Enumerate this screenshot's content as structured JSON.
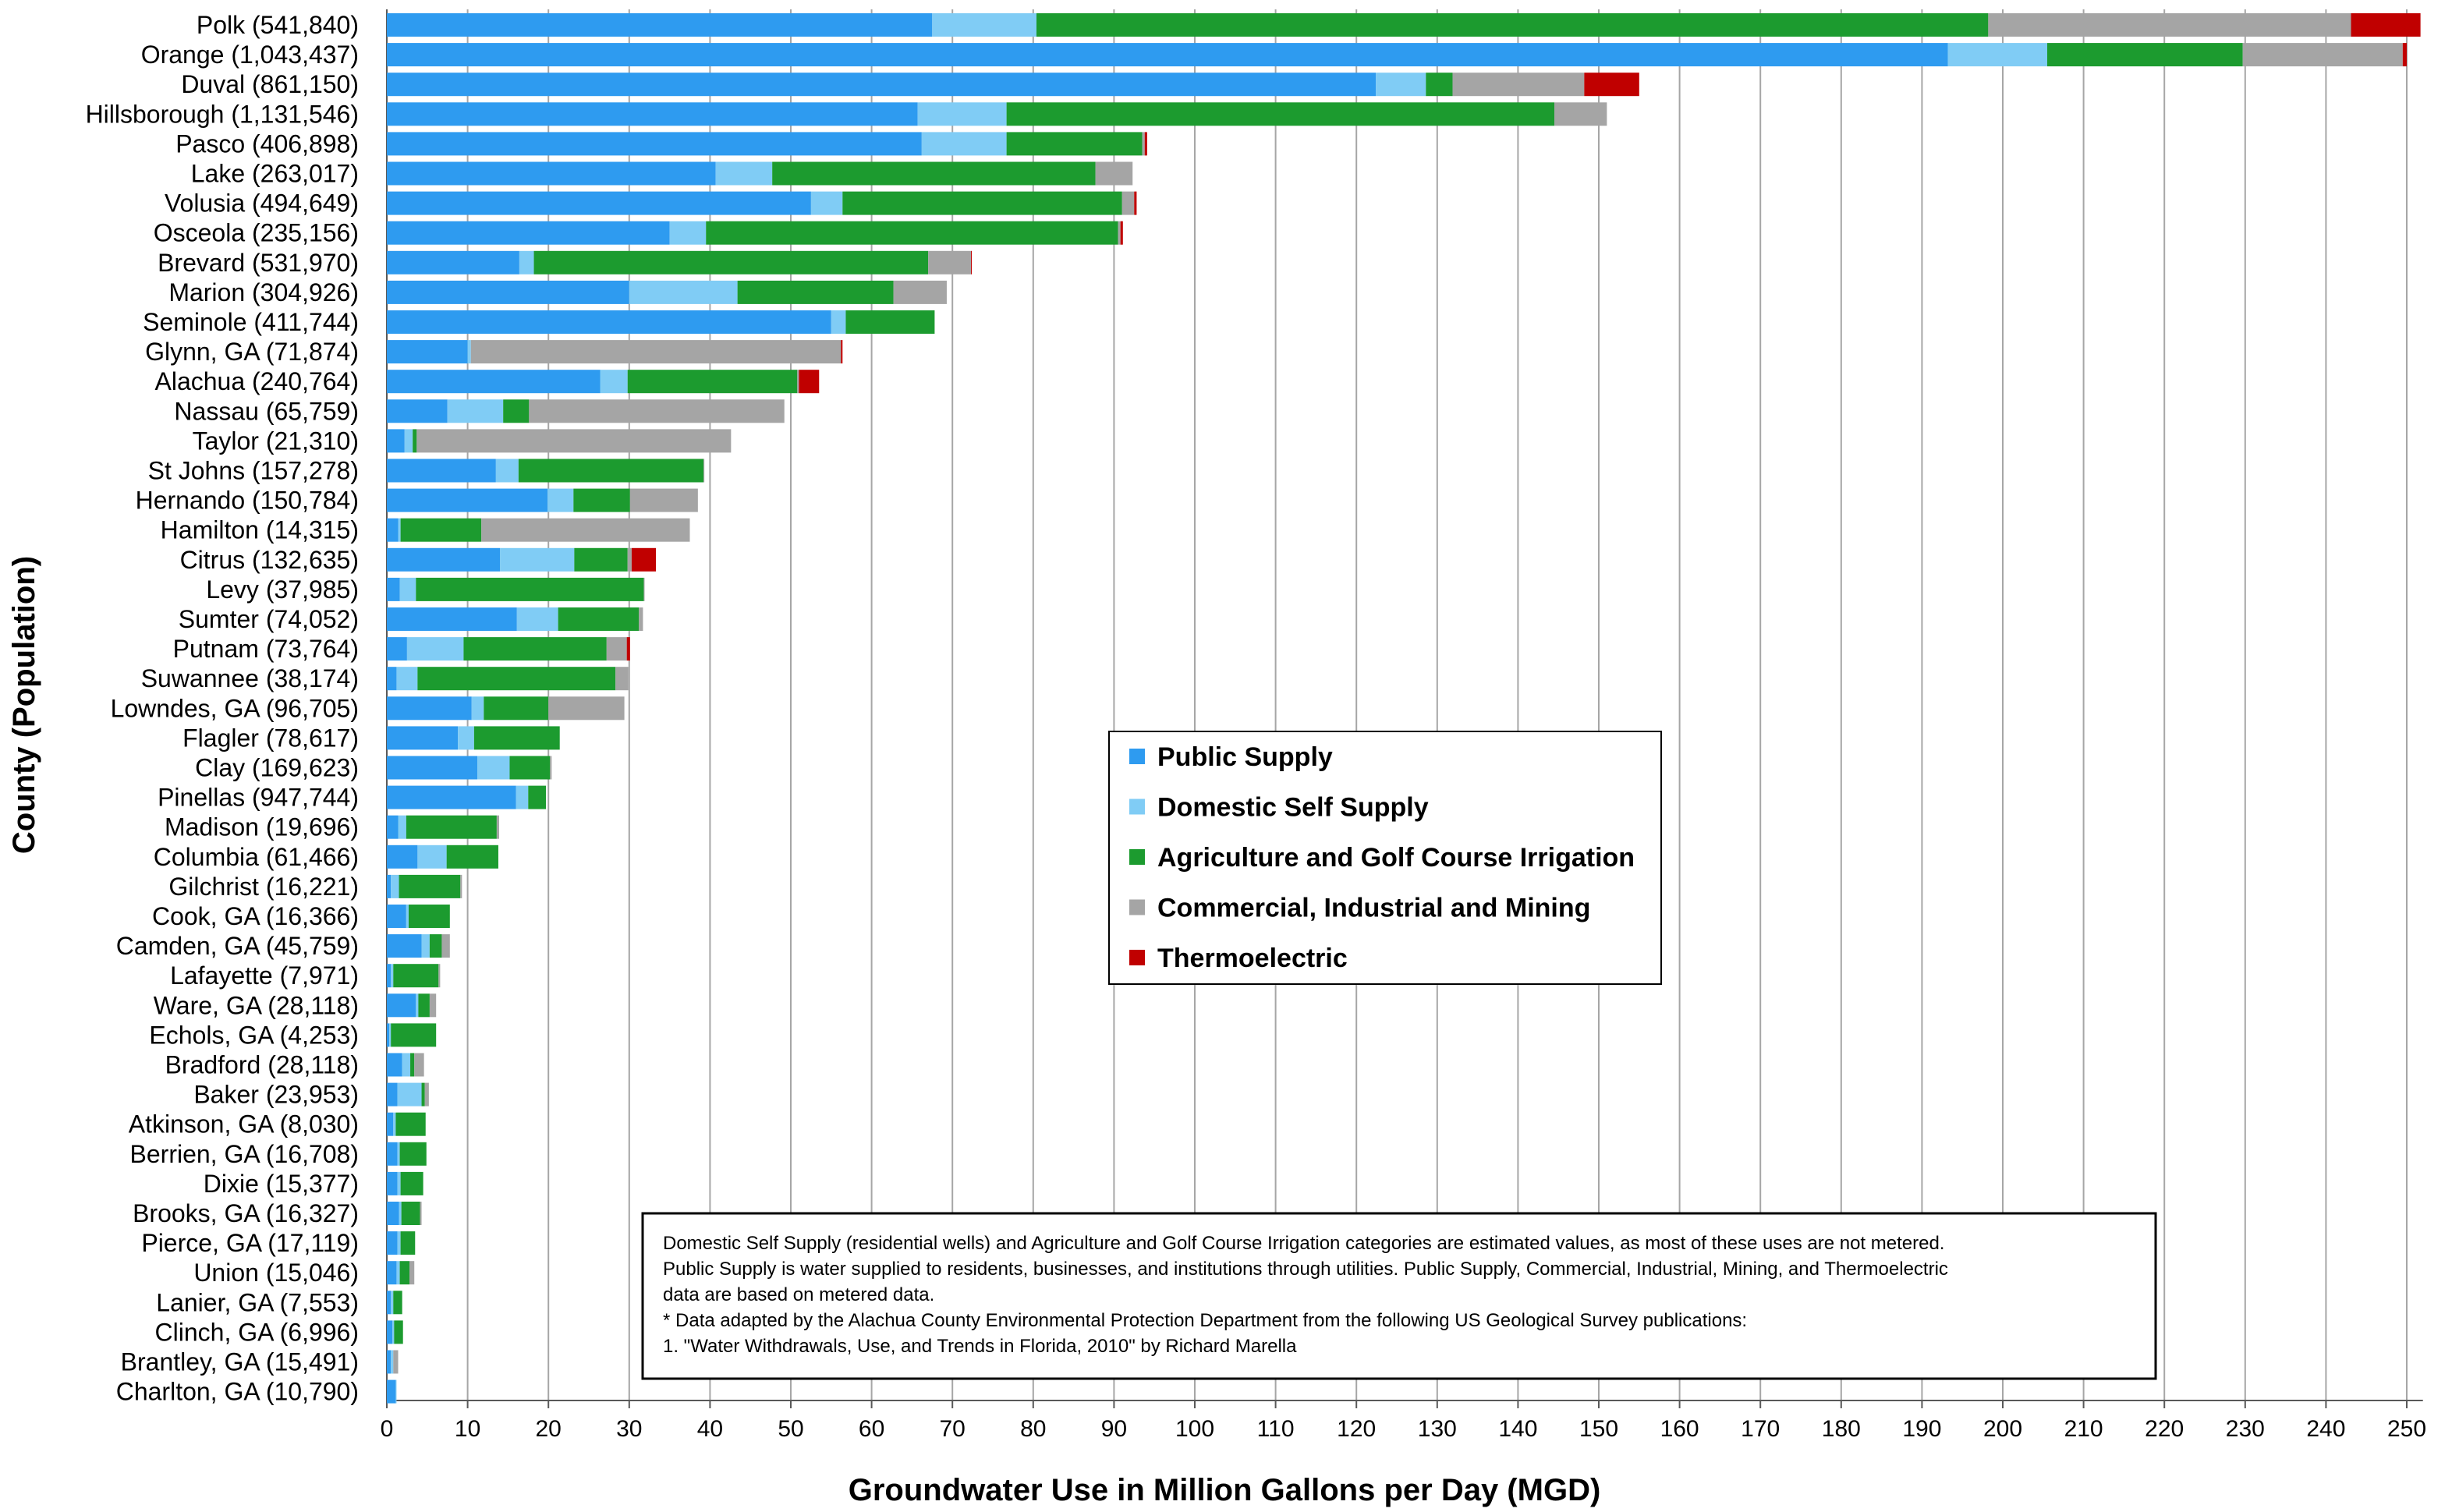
{
  "chart_data": {
    "type": "bar",
    "orientation": "horizontal",
    "stacked": true,
    "title": "",
    "xlabel": "Groundwater Use in Million Gallons per Day (MGD)",
    "ylabel": "County (Population)",
    "xlim": [
      0,
      252
    ],
    "x_ticks": [
      0,
      10,
      20,
      30,
      40,
      50,
      60,
      70,
      80,
      90,
      100,
      110,
      120,
      130,
      140,
      150,
      160,
      170,
      180,
      190,
      200,
      210,
      220,
      230,
      240,
      250
    ],
    "grid": "vertical",
    "legend_position": "center-right",
    "categories": [
      "Polk (541,840)",
      "Orange (1,043,437)",
      "Duval (861,150)",
      "Hillsborough (1,131,546)",
      "Pasco (406,898)",
      "Lake (263,017)",
      "Volusia (494,649)",
      "Osceola (235,156)",
      "Brevard (531,970)",
      "Marion (304,926)",
      "Seminole (411,744)",
      "Glynn, GA (71,874)",
      "Alachua (240,764)",
      "Nassau (65,759)",
      "Taylor (21,310)",
      "St Johns (157,278)",
      "Hernando (150,784)",
      "Hamilton (14,315)",
      "Citrus (132,635)",
      "Levy (37,985)",
      "Sumter (74,052)",
      "Putnam (73,764)",
      "Suwannee (38,174)",
      "Lowndes, GA (96,705)",
      "Flagler (78,617)",
      "Clay (169,623)",
      "Pinellas (947,744)",
      "Madison (19,696)",
      "Columbia (61,466)",
      "Gilchrist (16,221)",
      "Cook, GA (16,366)",
      "Camden, GA (45,759)",
      "Lafayette (7,971)",
      "Ware, GA (28,118)",
      "Echols, GA (4,253)",
      "Bradford (28,118)",
      "Baker (23,953)",
      "Atkinson, GA (8,030)",
      "Berrien, GA (16,708)",
      "Dixie (15,377)",
      "Brooks, GA (16,327)",
      "Pierce, GA (17,119)",
      "Union (15,046)",
      "Lanier, GA (7,553)",
      "Clinch, GA (6,996)",
      "Brantley, GA (15,491)",
      "Charlton, GA (10,790)"
    ],
    "series": [
      {
        "name": "Public Supply",
        "color": "#2E9BF0",
        "values": [
          67.5,
          193.2,
          122.4,
          65.7,
          66.2,
          40.7,
          52.5,
          35.0,
          16.4,
          30.0,
          55.0,
          10.0,
          26.4,
          7.5,
          2.2,
          13.5,
          19.9,
          1.4,
          14.0,
          1.6,
          16.1,
          2.5,
          1.2,
          10.5,
          8.8,
          11.2,
          16.0,
          1.4,
          3.8,
          0.5,
          2.4,
          4.3,
          0.5,
          3.6,
          0.3,
          1.9,
          1.3,
          0.8,
          1.3,
          1.3,
          1.5,
          1.3,
          1.2,
          0.5,
          0.7,
          0.5,
          1.1
        ]
      },
      {
        "name": "Domestic Self Supply",
        "color": "#80CCF5",
        "values": [
          12.9,
          12.3,
          6.2,
          11.0,
          10.5,
          7.0,
          3.9,
          4.5,
          1.8,
          13.4,
          1.8,
          0.4,
          3.4,
          6.9,
          1.0,
          2.8,
          3.2,
          0.3,
          9.2,
          2.0,
          5.1,
          7.0,
          2.6,
          1.5,
          2.0,
          4.0,
          1.5,
          1.0,
          3.6,
          1.0,
          0.3,
          1.0,
          0.3,
          0.3,
          0.2,
          1.0,
          3.0,
          0.3,
          0.3,
          0.4,
          0.3,
          0.4,
          0.4,
          0.3,
          0.2,
          0.3,
          0.1
        ]
      },
      {
        "name": "Agriculture and Golf Course Irrigation",
        "color": "#1C9B2F",
        "values": [
          117.8,
          24.2,
          3.3,
          67.8,
          16.8,
          40.0,
          34.6,
          51.0,
          48.8,
          19.3,
          11.0,
          0.0,
          21.0,
          3.2,
          0.5,
          22.9,
          7.0,
          10.0,
          6.6,
          28.2,
          10.0,
          17.7,
          24.5,
          8.0,
          10.6,
          5.0,
          2.2,
          11.2,
          6.4,
          7.6,
          5.1,
          1.5,
          5.6,
          1.4,
          5.6,
          0.5,
          0.4,
          3.7,
          3.3,
          2.8,
          2.3,
          1.8,
          1.2,
          1.1,
          1.1,
          0.0,
          0.0
        ]
      },
      {
        "name": "Commercial, Industrial and Mining",
        "color": "#A5A5A5",
        "values": [
          44.9,
          19.8,
          16.3,
          6.5,
          0.3,
          4.6,
          1.5,
          0.3,
          5.3,
          6.6,
          0.0,
          45.8,
          0.2,
          31.6,
          38.9,
          0.1,
          8.4,
          25.8,
          0.5,
          0.1,
          0.5,
          2.5,
          1.6,
          9.4,
          0.0,
          0.2,
          0.0,
          0.3,
          0.0,
          0.2,
          0.0,
          1.0,
          0.2,
          0.8,
          0.0,
          1.2,
          0.5,
          0.0,
          0.0,
          0.0,
          0.2,
          0.0,
          0.6,
          0.0,
          0.0,
          0.6,
          0.0
        ]
      },
      {
        "name": "Thermoelectric",
        "color": "#C00000",
        "values": [
          8.6,
          0.5,
          6.8,
          0.0,
          0.3,
          0.0,
          0.3,
          0.3,
          0.1,
          0.0,
          0.0,
          0.2,
          2.5,
          0.0,
          0.0,
          0.0,
          0.0,
          0.0,
          3.0,
          0.0,
          0.0,
          0.4,
          0.0,
          0.0,
          0.0,
          0.0,
          0.0,
          0.0,
          0.0,
          0.0,
          0.0,
          0.0,
          0.0,
          0.0,
          0.0,
          0.0,
          0.0,
          0.0,
          0.0,
          0.0,
          0.0,
          0.0,
          0.0,
          0.0,
          0.0,
          0.0,
          0.0
        ]
      }
    ],
    "annotation": [
      "Domestic Self Supply (residential wells) and Agriculture and Golf Course Irrigation categories are estimated values, as most of these uses are not metered.",
      "Public Supply is water supplied to residents, businesses, and institutions through utilities.  Public Supply, Commercial, Industrial, Mining, and Thermoelectric",
      "data are based on metered data.",
      "* Data adapted by the Alachua County Environmental Protection Department from the following US Geological Survey publications:",
      "1.  \"Water Withdrawals, Use, and Trends in Florida, 2010\" by Richard Marella"
    ]
  }
}
